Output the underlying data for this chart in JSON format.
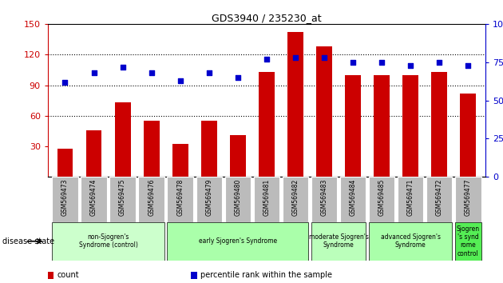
{
  "title": "GDS3940 / 235230_at",
  "samples": [
    "GSM569473",
    "GSM569474",
    "GSM569475",
    "GSM569476",
    "GSM569478",
    "GSM569479",
    "GSM569480",
    "GSM569481",
    "GSM569482",
    "GSM569483",
    "GSM569484",
    "GSM569485",
    "GSM569471",
    "GSM569472",
    "GSM569477"
  ],
  "counts": [
    28,
    46,
    73,
    55,
    32,
    55,
    41,
    103,
    142,
    128,
    100,
    100,
    100,
    103,
    82
  ],
  "percentiles": [
    62,
    68,
    72,
    68,
    63,
    68,
    65,
    77,
    78,
    78,
    75,
    75,
    73,
    75,
    73
  ],
  "ylim_left": [
    0,
    150
  ],
  "ylim_right": [
    0,
    100
  ],
  "yticks_left": [
    30,
    60,
    90,
    120,
    150
  ],
  "yticks_right": [
    0,
    25,
    50,
    75,
    100
  ],
  "bar_color": "#CC0000",
  "dot_color": "#0000CC",
  "groups": [
    {
      "label": "non-Sjogren's\nSyndrome (control)",
      "indices": [
        0,
        1,
        2,
        3
      ],
      "color": "#ccffcc"
    },
    {
      "label": "early Sjogren's Syndrome",
      "indices": [
        4,
        5,
        6,
        7,
        8
      ],
      "color": "#aaffaa"
    },
    {
      "label": "moderate Sjogren's\nSyndrome",
      "indices": [
        9,
        10
      ],
      "color": "#bbffbb"
    },
    {
      "label": "advanced Sjogren's\nSyndrome",
      "indices": [
        11,
        12,
        13
      ],
      "color": "#aaffaa"
    },
    {
      "label": "Sjogren\n's synd\nrome\ncontrol",
      "indices": [
        14
      ],
      "color": "#55ee55"
    }
  ],
  "disease_state_label": "disease state",
  "legend_count_label": "count",
  "legend_percentile_label": "percentile rank within the sample",
  "tick_bg_color": "#bbbbbb",
  "dotted_line_color": "#000000"
}
